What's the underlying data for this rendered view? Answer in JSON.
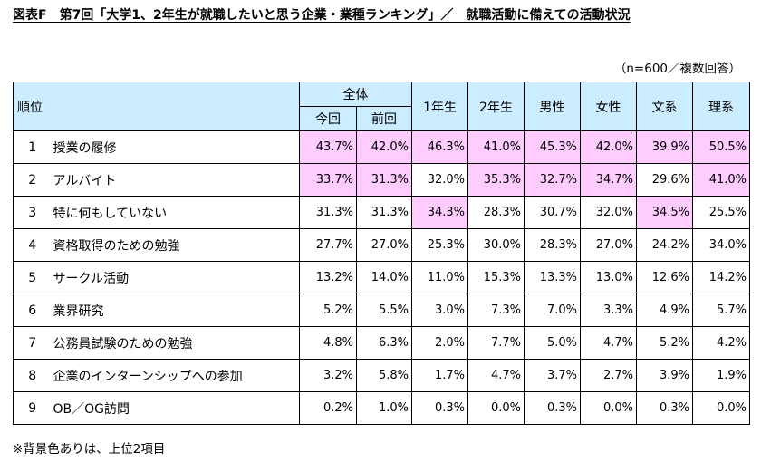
{
  "title": "図表F　第7回「大学1、2年生が就職したいと思う企業・業種ランキング」／　就職活動に備えての活動状況",
  "note_top": "（n=600／複数回答）",
  "note_bottom": "※背景色ありは、上位2項目",
  "header": {
    "rank_label": "順位",
    "overall": "全体",
    "this_time": "今回",
    "previous": "前回",
    "first_year": "1年生",
    "second_year": "2年生",
    "male": "男性",
    "female": "女性",
    "humanities": "文系",
    "science": "理系"
  },
  "rows": [
    {
      "rank": "1",
      "item": "授業の履修",
      "values": [
        "43.7%",
        "42.0%",
        "46.3%",
        "41.0%",
        "45.3%",
        "42.0%",
        "39.9%",
        "50.5%"
      ],
      "highlight": [
        true,
        true,
        true,
        true,
        true,
        true,
        true,
        true
      ]
    },
    {
      "rank": "2",
      "item": "アルバイト",
      "values": [
        "33.7%",
        "31.3%",
        "32.0%",
        "35.3%",
        "32.7%",
        "34.7%",
        "29.6%",
        "41.0%"
      ],
      "highlight": [
        true,
        true,
        false,
        true,
        true,
        true,
        false,
        true
      ]
    },
    {
      "rank": "3",
      "item": "特に何もしていない",
      "values": [
        "31.3%",
        "31.3%",
        "34.3%",
        "28.3%",
        "30.7%",
        "32.0%",
        "34.5%",
        "25.5%"
      ],
      "highlight": [
        false,
        false,
        true,
        false,
        false,
        false,
        true,
        false
      ]
    },
    {
      "rank": "4",
      "item": "資格取得のための勉強",
      "values": [
        "27.7%",
        "27.0%",
        "25.3%",
        "30.0%",
        "28.3%",
        "27.0%",
        "24.2%",
        "34.0%"
      ],
      "highlight": [
        false,
        false,
        false,
        false,
        false,
        false,
        false,
        false
      ]
    },
    {
      "rank": "5",
      "item": "サークル活動",
      "values": [
        "13.2%",
        "14.0%",
        "11.0%",
        "15.3%",
        "13.3%",
        "13.0%",
        "12.6%",
        "14.2%"
      ],
      "highlight": [
        false,
        false,
        false,
        false,
        false,
        false,
        false,
        false
      ]
    },
    {
      "rank": "6",
      "item": "業界研究",
      "values": [
        "5.2%",
        "5.5%",
        "3.0%",
        "7.3%",
        "7.0%",
        "3.3%",
        "4.9%",
        "5.7%"
      ],
      "highlight": [
        false,
        false,
        false,
        false,
        false,
        false,
        false,
        false
      ]
    },
    {
      "rank": "7",
      "item": "公務員試験のための勉強",
      "values": [
        "4.8%",
        "6.3%",
        "2.0%",
        "7.7%",
        "5.0%",
        "4.7%",
        "5.2%",
        "4.2%"
      ],
      "highlight": [
        false,
        false,
        false,
        false,
        false,
        false,
        false,
        false
      ]
    },
    {
      "rank": "8",
      "item": "企業のインターンシップへの参加",
      "values": [
        "3.2%",
        "5.8%",
        "1.7%",
        "4.7%",
        "3.7%",
        "2.7%",
        "3.9%",
        "1.9%"
      ],
      "highlight": [
        false,
        false,
        false,
        false,
        false,
        false,
        false,
        false
      ]
    },
    {
      "rank": "9",
      "item": "OB／OG訪問",
      "values": [
        "0.2%",
        "1.0%",
        "0.3%",
        "0.0%",
        "0.3%",
        "0.0%",
        "0.3%",
        "0.0%"
      ],
      "highlight": [
        false,
        false,
        false,
        false,
        false,
        false,
        false,
        false
      ]
    }
  ],
  "colors": {
    "header_bg": "#ccecff",
    "highlight_bg": "#ffccff"
  }
}
